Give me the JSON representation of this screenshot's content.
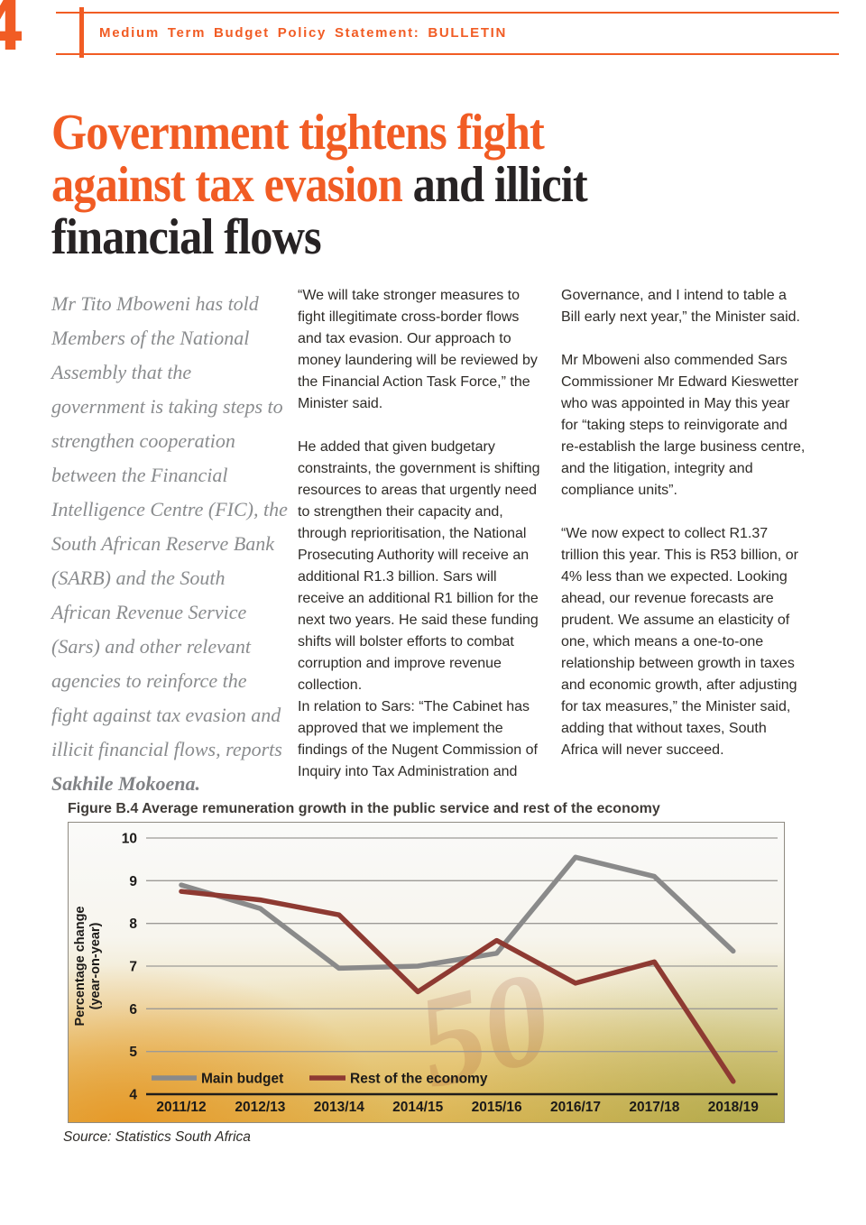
{
  "theme": {
    "accent_orange": "#f15c24",
    "headline_dark": "#272324",
    "standfirst_gray": "#8a8c8e",
    "body_text": "#2e2b27"
  },
  "header": {
    "page_number": "4",
    "title": "Medium Term Budget Policy Statement: BULLETIN"
  },
  "headline": {
    "lines": [
      {
        "orange": "Government tightens fight",
        "dark": ""
      },
      {
        "orange": "against tax evasion",
        "dark": " and illicit"
      },
      {
        "orange": "",
        "dark": "financial flows"
      }
    ]
  },
  "standfirst": {
    "text": "Mr Tito Mboweni has told Members of the National Assembly that the government is taking steps to strengthen cooperation between the Financial Intelligence Centre (FIC), the South African Reserve Bank (SARB) and the South African Revenue Service (Sars) and other relevant agencies to reinforce the fight against tax evasion and illicit financial flows, reports ",
    "author": "Sakhile Mokoena."
  },
  "columns": {
    "middle": [
      "“We will take stronger measures to fight illegitimate cross-border flows and tax evasion. Our approach to money laundering will be reviewed by the Financial Action Task Force,” the Minister said.",
      "He added that given budgetary constraints, the government is shifting resources to areas that urgently need to strengthen their capacity and, through reprioritisation, the National Prosecuting Authority will receive an additional R1.3 billion. Sars will receive an additional R1 billion for the next two years. He said these funding shifts will bolster efforts to combat corruption and improve revenue collection.\nIn relation to Sars: “The Cabinet has approved that we implement the findings of the Nugent Commission of Inquiry into Tax Administration and"
    ],
    "right": [
      "Governance, and I intend to table a Bill early next year,” the Minister said.",
      "Mr Mboweni also commended Sars Commissioner Mr Edward Kieswetter who was appointed in May this year for “taking steps to reinvigorate and re-establish the large business centre, and the litigation, integrity and compliance units”.",
      "“We now expect to collect R1.37 trillion this year. This is R53 billion, or 4% less than we expected. Looking ahead, our revenue forecasts are prudent. We assume an elasticity of one, which means a one-to-one relationship between growth in taxes and economic growth, after adjusting for tax measures,” the Minister said, adding that without taxes, South Africa will never succeed."
    ]
  },
  "figure": {
    "source": "Source: Statistics South Africa",
    "watermark": "50"
  },
  "chart_data": {
    "type": "line",
    "title": "Figure B.4 Average remuneration growth in the public service and rest of the economy",
    "categories": [
      "2011/12",
      "2012/13",
      "2013/14",
      "2014/15",
      "2015/16",
      "2016/17",
      "2017/18",
      "2018/19"
    ],
    "series": [
      {
        "name": "Main budget",
        "color": "#8a8a8a",
        "values": [
          8.9,
          8.35,
          6.95,
          7.0,
          7.3,
          9.55,
          9.1,
          7.35
        ]
      },
      {
        "name": "Rest of the economy",
        "color": "#8e3a32",
        "values": [
          8.75,
          8.55,
          8.2,
          6.4,
          7.6,
          6.6,
          7.1,
          4.3
        ]
      }
    ],
    "xlabel": "",
    "ylabel": "Percentage change\n(year-on-year)",
    "ylim": [
      4,
      10
    ],
    "yticks": [
      4,
      5,
      6,
      7,
      8,
      9,
      10
    ],
    "grid": true,
    "legend_position": "bottom-left-inside"
  }
}
